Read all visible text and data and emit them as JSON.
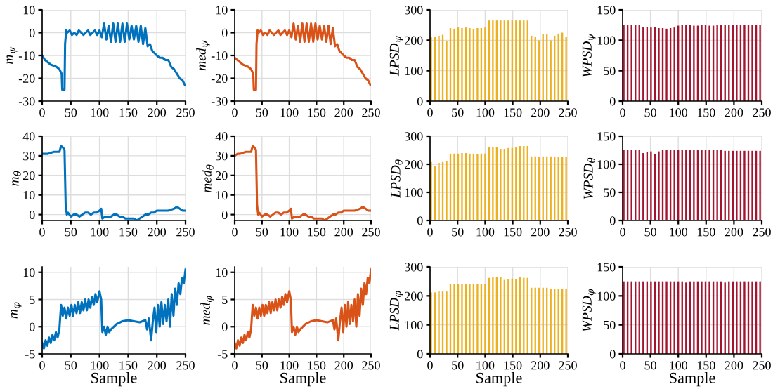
{
  "chart_data": [
    {
      "type": "line",
      "ylabel": "m$_{ψ}$",
      "xlim": [
        0,
        250
      ],
      "xticks": [
        0,
        50,
        100,
        150,
        200,
        250
      ],
      "ylim": [
        -30,
        10
      ],
      "yticks": [
        -30,
        -20,
        -10,
        0,
        10
      ],
      "grid": true,
      "series": [
        {
          "color": "#0072bd",
          "x": [
            0,
            5,
            10,
            15,
            20,
            25,
            30,
            34,
            35,
            39,
            40,
            42,
            44,
            48,
            52,
            56,
            60,
            64,
            68,
            72,
            76,
            80,
            84,
            88,
            92,
            96,
            100,
            104,
            108,
            112,
            116,
            120,
            124,
            128,
            132,
            136,
            140,
            144,
            148,
            152,
            156,
            160,
            164,
            168,
            172,
            176,
            180,
            184,
            188,
            192,
            196,
            200,
            205,
            210,
            215,
            220,
            225,
            230,
            235,
            240,
            245,
            249
          ],
          "values": [
            -10,
            -12,
            -13,
            -14,
            -14.5,
            -15,
            -16,
            -18,
            -25,
            -25,
            -5,
            1,
            0,
            1,
            -1,
            0,
            -1,
            1,
            0,
            -1,
            0,
            1,
            -1,
            0,
            1,
            -1,
            1,
            -2,
            4,
            -3,
            3,
            -4,
            4,
            -4,
            4,
            -4,
            4,
            -4,
            4,
            -3,
            3,
            -3,
            3,
            -4,
            3,
            -5,
            2,
            -6,
            -5,
            -8,
            -9,
            -10,
            -11,
            -11,
            -12,
            -12,
            -15,
            -16,
            -18,
            -20,
            -21,
            -23
          ]
        }
      ]
    },
    {
      "type": "line",
      "ylabel": "med$_{ψ}$",
      "xlim": [
        0,
        250
      ],
      "xticks": [
        0,
        50,
        100,
        150,
        200,
        250
      ],
      "ylim": [
        -30,
        10
      ],
      "yticks": [
        -30,
        -20,
        -10,
        0,
        10
      ],
      "grid": true,
      "series": [
        {
          "color": "#d95319",
          "x": [
            0,
            5,
            10,
            15,
            20,
            25,
            30,
            34,
            35,
            39,
            40,
            42,
            44,
            48,
            52,
            56,
            60,
            64,
            68,
            72,
            76,
            80,
            84,
            88,
            92,
            96,
            100,
            104,
            108,
            112,
            116,
            120,
            124,
            128,
            132,
            136,
            140,
            144,
            148,
            152,
            156,
            160,
            164,
            168,
            172,
            176,
            180,
            184,
            188,
            192,
            196,
            200,
            205,
            210,
            215,
            220,
            225,
            230,
            235,
            240,
            245,
            249
          ],
          "values": [
            -11,
            -12,
            -13,
            -14,
            -14.5,
            -15,
            -16,
            -18,
            -25,
            -25,
            -5,
            1,
            0,
            1,
            -1,
            0,
            -1,
            1,
            0,
            -1,
            0,
            1,
            -1,
            0,
            1,
            -1,
            1,
            -2,
            4,
            -3,
            3,
            -4,
            4,
            -4,
            4,
            -4,
            4,
            -4,
            4,
            -3,
            3,
            -3,
            3,
            -4,
            3,
            -5,
            2,
            -6,
            -5,
            -8,
            -9,
            -10,
            -11,
            -11,
            -12,
            -12,
            -15,
            -16,
            -18,
            -20,
            -21,
            -23
          ]
        }
      ]
    },
    {
      "type": "bar",
      "ylabel": "LPSD$_{ψ}$",
      "xlim": [
        0,
        250
      ],
      "xticks": [
        0,
        50,
        100,
        150,
        200,
        250
      ],
      "ylim": [
        0,
        300
      ],
      "yticks": [
        0,
        100,
        200,
        300
      ],
      "grid": true,
      "series": [
        {
          "color": "#edb120",
          "x": [
            2,
            9,
            16,
            23,
            30,
            37,
            44,
            51,
            58,
            65,
            72,
            79,
            86,
            93,
            100,
            107,
            114,
            121,
            128,
            135,
            142,
            149,
            156,
            163,
            170,
            177,
            184,
            191,
            198,
            205,
            212,
            219,
            226,
            233,
            240,
            247
          ],
          "values": [
            210,
            212,
            215,
            218,
            198,
            240,
            238,
            242,
            240,
            242,
            240,
            236,
            240,
            240,
            242,
            265,
            265,
            265,
            265,
            265,
            265,
            265,
            265,
            265,
            265,
            265,
            215,
            212,
            200,
            220,
            220,
            200,
            215,
            222,
            225,
            210
          ]
        }
      ]
    },
    {
      "type": "bar",
      "ylabel": "WPSD$_{ψ}$",
      "xlim": [
        0,
        250
      ],
      "xticks": [
        0,
        50,
        100,
        150,
        200,
        250
      ],
      "ylim": [
        0,
        150
      ],
      "yticks": [
        0,
        50,
        100,
        150
      ],
      "grid": true,
      "series": [
        {
          "color": "#a2142f",
          "x": [
            2,
            9,
            16,
            23,
            30,
            37,
            44,
            51,
            58,
            65,
            72,
            79,
            86,
            93,
            100,
            107,
            114,
            121,
            128,
            135,
            142,
            149,
            156,
            163,
            170,
            177,
            184,
            191,
            198,
            205,
            212,
            219,
            226,
            233,
            240,
            247
          ],
          "values": [
            125,
            125,
            125,
            125,
            125,
            122,
            122,
            121,
            122,
            120,
            120,
            119,
            120,
            121,
            124,
            125,
            125,
            125,
            124,
            124,
            125,
            125,
            124,
            124,
            125,
            125,
            125,
            125,
            125,
            125,
            125,
            125,
            125,
            125,
            125,
            125
          ]
        }
      ]
    },
    {
      "type": "line",
      "ylabel": "m$_{θ}$",
      "xlim": [
        0,
        250
      ],
      "xticks": [
        0,
        50,
        100,
        150,
        200,
        250
      ],
      "ylim": [
        -3,
        40
      ],
      "yticks": [
        0,
        10,
        20,
        30,
        40
      ],
      "grid": true,
      "series": [
        {
          "color": "#0072bd",
          "x": [
            0,
            5,
            10,
            15,
            20,
            25,
            30,
            33,
            37,
            39,
            41,
            43,
            45,
            50,
            55,
            60,
            65,
            70,
            75,
            80,
            85,
            90,
            95,
            100,
            103,
            105,
            110,
            115,
            120,
            125,
            130,
            135,
            140,
            145,
            150,
            155,
            160,
            165,
            170,
            175,
            180,
            185,
            190,
            195,
            200,
            205,
            210,
            215,
            220,
            225,
            230,
            235,
            240,
            245,
            249
          ],
          "values": [
            31,
            31,
            31,
            31.5,
            32,
            32,
            32,
            35,
            34,
            33,
            5,
            0,
            1,
            -1,
            0,
            0,
            -1,
            0,
            1,
            1,
            0,
            1,
            1,
            2,
            3,
            -2,
            -1,
            -1,
            -1,
            0,
            0,
            -1,
            -1,
            -2,
            -2,
            -2,
            -2,
            -3,
            -2,
            -1,
            0,
            0,
            1,
            1,
            2,
            2,
            2,
            2,
            2,
            2.5,
            3,
            4,
            3,
            2,
            2
          ]
        }
      ]
    },
    {
      "type": "line",
      "ylabel": "med$_{θ}$",
      "xlim": [
        0,
        250
      ],
      "xticks": [
        0,
        50,
        100,
        150,
        200,
        250
      ],
      "ylim": [
        -3,
        40
      ],
      "yticks": [
        0,
        10,
        20,
        30,
        40
      ],
      "grid": true,
      "series": [
        {
          "color": "#d95319",
          "x": [
            0,
            5,
            10,
            15,
            20,
            25,
            30,
            33,
            37,
            39,
            41,
            43,
            45,
            50,
            55,
            60,
            65,
            70,
            75,
            80,
            85,
            90,
            95,
            100,
            103,
            105,
            110,
            115,
            120,
            125,
            130,
            135,
            140,
            145,
            150,
            155,
            160,
            165,
            170,
            175,
            180,
            185,
            190,
            195,
            200,
            205,
            210,
            215,
            220,
            225,
            230,
            235,
            240,
            245,
            249
          ],
          "values": [
            30,
            31,
            31,
            31.5,
            32,
            32,
            32,
            35,
            34,
            33,
            5,
            0,
            1,
            -1,
            0,
            0,
            -1,
            0,
            1,
            1,
            0,
            1,
            1,
            2,
            3,
            -2,
            -1,
            -1,
            -1,
            0,
            0,
            -1,
            -1,
            -2,
            -2,
            -2,
            -2,
            -3,
            -2,
            -1,
            0,
            0,
            1,
            1,
            2,
            2,
            2,
            2,
            2,
            2.5,
            3,
            4,
            3,
            2,
            2
          ]
        }
      ]
    },
    {
      "type": "bar",
      "ylabel": "LPSD$_{θ}$",
      "xlim": [
        0,
        250
      ],
      "xticks": [
        0,
        50,
        100,
        150,
        200,
        250
      ],
      "ylim": [
        0,
        300
      ],
      "yticks": [
        0,
        100,
        200,
        300
      ],
      "grid": true,
      "series": [
        {
          "color": "#edb120",
          "x": [
            2,
            9,
            16,
            23,
            30,
            37,
            44,
            51,
            58,
            65,
            72,
            79,
            86,
            93,
            100,
            107,
            114,
            121,
            128,
            135,
            142,
            149,
            156,
            163,
            170,
            177,
            184,
            191,
            198,
            205,
            212,
            219,
            226,
            233,
            240,
            247
          ],
          "values": [
            208,
            195,
            205,
            208,
            210,
            238,
            238,
            238,
            240,
            240,
            238,
            235,
            235,
            238,
            238,
            262,
            260,
            262,
            255,
            255,
            258,
            258,
            262,
            265,
            265,
            265,
            228,
            228,
            225,
            228,
            228,
            228,
            226,
            226,
            225,
            225
          ]
        }
      ]
    },
    {
      "type": "bar",
      "ylabel": "WPSD$_{θ}$",
      "xlim": [
        0,
        250
      ],
      "xticks": [
        0,
        50,
        100,
        150,
        200,
        250
      ],
      "ylim": [
        0,
        150
      ],
      "yticks": [
        0,
        50,
        100,
        150
      ],
      "grid": true,
      "series": [
        {
          "color": "#a2142f",
          "x": [
            2,
            9,
            16,
            23,
            30,
            37,
            44,
            51,
            58,
            65,
            72,
            79,
            86,
            93,
            100,
            107,
            114,
            121,
            128,
            135,
            142,
            149,
            156,
            163,
            170,
            177,
            184,
            191,
            198,
            205,
            212,
            219,
            226,
            233,
            240,
            247
          ],
          "values": [
            125,
            125,
            125,
            125,
            125,
            120,
            122,
            123,
            118,
            123,
            126,
            126,
            126,
            126,
            126,
            125,
            125,
            125,
            125,
            125,
            125,
            125,
            125,
            125,
            125,
            125,
            124,
            124,
            124,
            124,
            124,
            124,
            124,
            124,
            124,
            124
          ]
        }
      ]
    },
    {
      "type": "line",
      "ylabel": "m$_{φ}$",
      "xlabel": "Sample",
      "xlim": [
        0,
        250
      ],
      "xticks": [
        0,
        50,
        100,
        150,
        200,
        250
      ],
      "ylim": [
        -5,
        11
      ],
      "yticks": [
        -5,
        0,
        5,
        10
      ],
      "grid": true,
      "series": [
        {
          "color": "#0072bd",
          "x": [
            0,
            3,
            6,
            9,
            12,
            15,
            18,
            21,
            24,
            27,
            30,
            33,
            36,
            39,
            42,
            45,
            48,
            51,
            54,
            57,
            60,
            63,
            66,
            69,
            72,
            75,
            78,
            81,
            84,
            87,
            90,
            93,
            96,
            100,
            103,
            105,
            108,
            111,
            114,
            117,
            120,
            130,
            140,
            150,
            160,
            170,
            180,
            183,
            186,
            190,
            193,
            196,
            199,
            202,
            205,
            208,
            211,
            214,
            217,
            220,
            223,
            226,
            229,
            232,
            235,
            238,
            241,
            244,
            247,
            250
          ],
          "values": [
            -3,
            -4,
            -2.5,
            -3.5,
            -2,
            -3,
            -1.5,
            -2.5,
            -1,
            -2,
            -0.5,
            4,
            2,
            3.5,
            1.5,
            3.5,
            2,
            4,
            2,
            4,
            2.5,
            4.5,
            2.5,
            4.5,
            3,
            5,
            3,
            5,
            3.5,
            5.5,
            4,
            6,
            4.5,
            6.5,
            5,
            -1,
            0,
            -1.5,
            0,
            -1,
            -0.5,
            0.5,
            1,
            1.2,
            1,
            0.8,
            1.2,
            -0.5,
            1.5,
            -2.5,
            1,
            3.5,
            -1,
            4,
            0,
            4.5,
            0.5,
            4,
            1,
            5,
            0,
            6,
            2,
            7,
            4,
            8,
            6,
            9,
            8,
            10.5
          ]
        }
      ]
    },
    {
      "type": "line",
      "ylabel": "med$_{φ}$",
      "xlabel": "Sample",
      "xlim": [
        0,
        250
      ],
      "xticks": [
        0,
        50,
        100,
        150,
        200,
        250
      ],
      "ylim": [
        -5,
        11
      ],
      "yticks": [
        -5,
        0,
        5,
        10
      ],
      "grid": true,
      "series": [
        {
          "color": "#d95319",
          "x": [
            0,
            3,
            6,
            9,
            12,
            15,
            18,
            21,
            24,
            27,
            30,
            33,
            36,
            39,
            42,
            45,
            48,
            51,
            54,
            57,
            60,
            63,
            66,
            69,
            72,
            75,
            78,
            81,
            84,
            87,
            90,
            93,
            96,
            100,
            103,
            105,
            108,
            111,
            114,
            117,
            120,
            130,
            140,
            150,
            160,
            170,
            180,
            183,
            186,
            190,
            193,
            196,
            199,
            202,
            205,
            208,
            211,
            214,
            217,
            220,
            223,
            226,
            229,
            232,
            235,
            238,
            241,
            244,
            247,
            250
          ],
          "values": [
            -3,
            -4,
            -2.5,
            -3.5,
            -2,
            -3,
            -1.5,
            -2.5,
            -1,
            -2,
            -0.5,
            4,
            2,
            3.5,
            1.5,
            3.5,
            2,
            4,
            2,
            4,
            2.5,
            4.5,
            2.5,
            4.5,
            3,
            5,
            3,
            5,
            3.5,
            5.5,
            4,
            6,
            4.5,
            6.5,
            5,
            -1,
            0,
            -1.5,
            0,
            -1,
            -0.5,
            0.5,
            1,
            1.2,
            1,
            0.8,
            1.2,
            -0.5,
            1.5,
            -2.5,
            1,
            3.5,
            -1,
            4,
            0,
            4.5,
            0.5,
            4,
            1,
            5,
            0,
            6,
            2,
            7,
            4,
            8,
            6,
            9,
            8,
            10.5
          ]
        }
      ]
    },
    {
      "type": "bar",
      "ylabel": "LPSD$_{φ}$",
      "xlabel": "Sample",
      "xlim": [
        0,
        250
      ],
      "xticks": [
        0,
        50,
        100,
        150,
        200,
        250
      ],
      "ylim": [
        0,
        300
      ],
      "yticks": [
        0,
        100,
        200,
        300
      ],
      "grid": true,
      "series": [
        {
          "color": "#edb120",
          "x": [
            2,
            9,
            16,
            23,
            30,
            37,
            44,
            51,
            58,
            65,
            72,
            79,
            86,
            93,
            100,
            107,
            114,
            121,
            128,
            135,
            142,
            149,
            156,
            163,
            170,
            177,
            184,
            191,
            198,
            205,
            212,
            219,
            226,
            233,
            240,
            247
          ],
          "values": [
            212,
            212,
            215,
            215,
            215,
            240,
            240,
            240,
            240,
            240,
            240,
            240,
            240,
            240,
            240,
            262,
            265,
            265,
            265,
            255,
            258,
            260,
            258,
            265,
            262,
            262,
            228,
            228,
            228,
            228,
            228,
            225,
            225,
            225,
            225,
            225
          ]
        }
      ]
    },
    {
      "type": "bar",
      "ylabel": "WPSD$_{φ}$",
      "xlabel": "Sample",
      "xlim": [
        0,
        250
      ],
      "xticks": [
        0,
        50,
        100,
        150,
        200,
        250
      ],
      "ylim": [
        0,
        150
      ],
      "yticks": [
        0,
        50,
        100,
        150
      ],
      "grid": true,
      "series": [
        {
          "color": "#a2142f",
          "x": [
            2,
            9,
            16,
            23,
            30,
            37,
            44,
            51,
            58,
            65,
            72,
            79,
            86,
            93,
            100,
            107,
            114,
            121,
            128,
            135,
            142,
            149,
            156,
            163,
            170,
            177,
            184,
            191,
            198,
            205,
            212,
            219,
            226,
            233,
            240,
            247
          ],
          "values": [
            125,
            125,
            125,
            125,
            125,
            125,
            125,
            125,
            125,
            125,
            125,
            125,
            125,
            125,
            125,
            125,
            123,
            125,
            125,
            125,
            125,
            125,
            125,
            125,
            125,
            125,
            123,
            125,
            125,
            125,
            125,
            125,
            125,
            125,
            125,
            125
          ]
        }
      ]
    }
  ]
}
